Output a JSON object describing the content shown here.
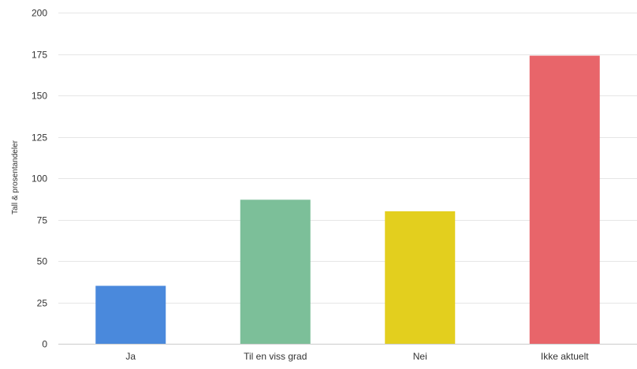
{
  "chart_data": {
    "type": "bar",
    "title": "",
    "xlabel": "",
    "ylabel": "Tall & prosentandeler",
    "categories": [
      "Ja",
      "Til en viss grad",
      "Nei",
      "Ikke aktuelt"
    ],
    "values": [
      35,
      87,
      80,
      174
    ],
    "colors": [
      "#4a89dc",
      "#7cbf99",
      "#e3cf1e",
      "#e8656a"
    ],
    "ylim": [
      0,
      200
    ],
    "yticks": [
      0,
      25,
      50,
      75,
      100,
      125,
      150,
      175,
      200
    ],
    "grid": true,
    "legend": "none"
  }
}
